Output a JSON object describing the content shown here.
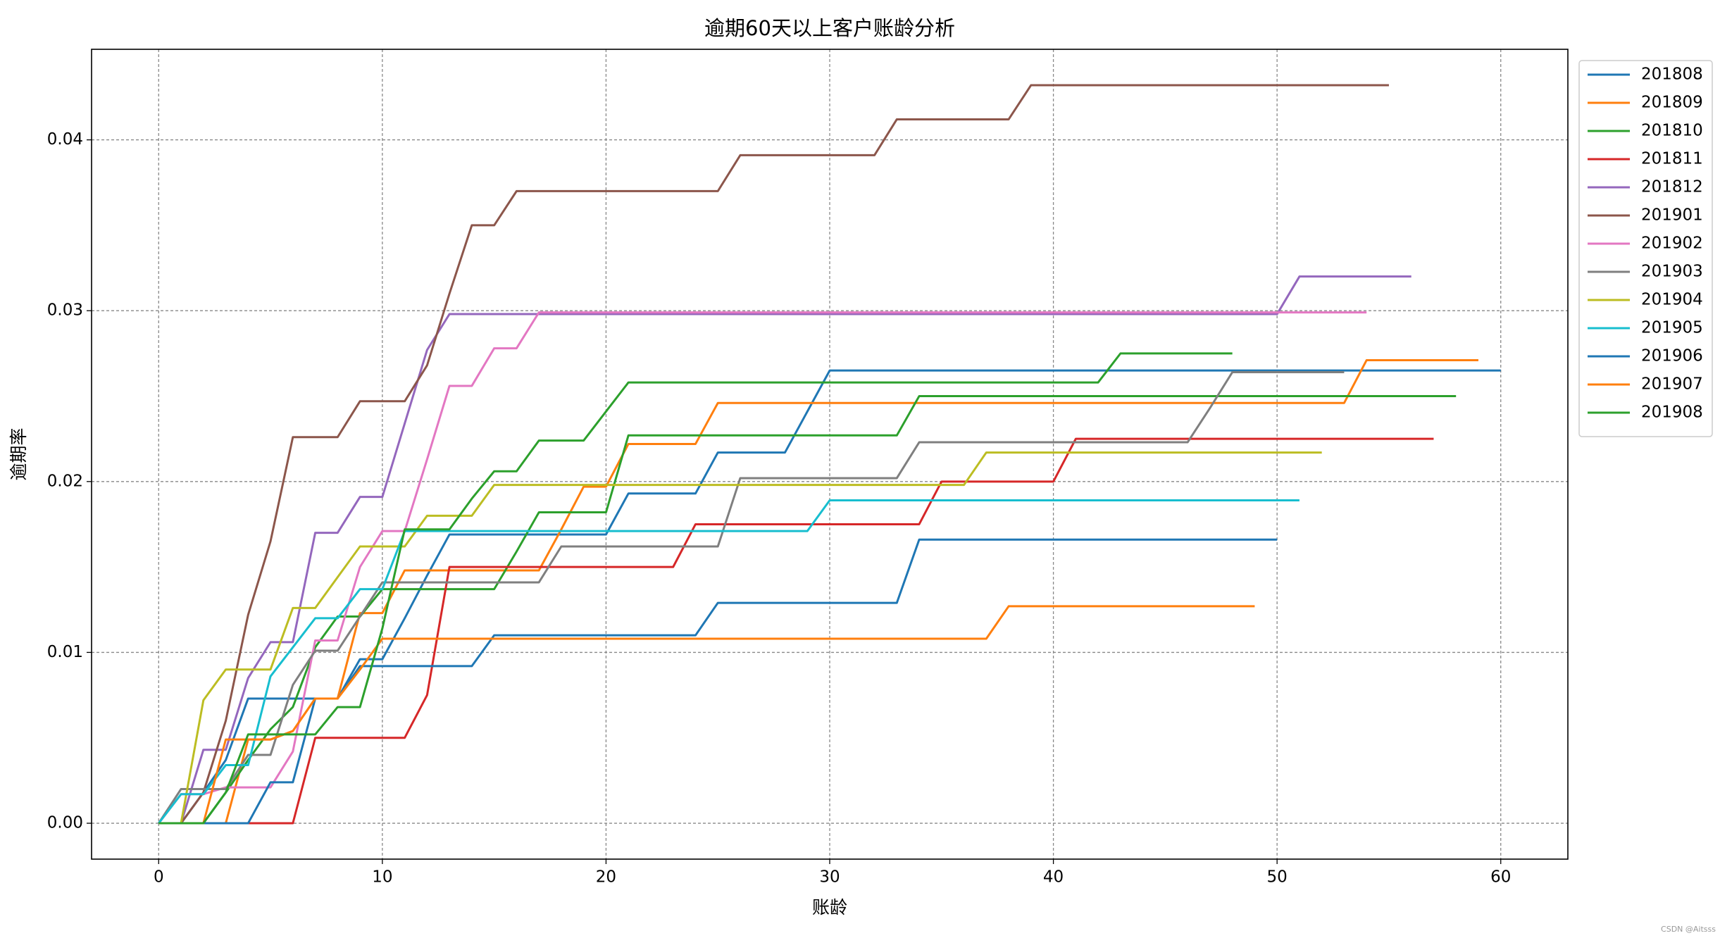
{
  "chart_data": {
    "type": "line",
    "title": "逾期60天以上客户账龄分析",
    "xlabel": "账龄",
    "ylabel": "逾期率",
    "watermark": "CSDN @Aitsss",
    "x": [
      0,
      1,
      2,
      3,
      4,
      5,
      6,
      7,
      8,
      9,
      10,
      11,
      12,
      13,
      14,
      15,
      16,
      17,
      18,
      19,
      20,
      21,
      22,
      23,
      24,
      25,
      26,
      27,
      28,
      29,
      30,
      31,
      32,
      33,
      34,
      35,
      36,
      37,
      38,
      39,
      40,
      41,
      42,
      43,
      44,
      45,
      46,
      47,
      48,
      49,
      50,
      51,
      52,
      53,
      54,
      55,
      56,
      57,
      58,
      59,
      60
    ],
    "xlim": [
      -3,
      63
    ],
    "ylim": [
      -0.0021,
      0.0453
    ],
    "xticks": [
      0,
      10,
      20,
      30,
      40,
      50,
      60
    ],
    "yticks": [
      {
        "value": 0,
        "label": "0.00"
      },
      0.01,
      0.02,
      0.03,
      0.04
    ],
    "grid": true,
    "legend": "outside upper right",
    "series": [
      {
        "name": "201808",
        "color": "#1f77b4",
        "values": [
          0,
          0,
          0.0018,
          0.0037,
          0.0073,
          0.0073,
          0.0073,
          0.0073,
          0.0073,
          0.0096,
          0.0096,
          0.012,
          0.0145,
          0.0169,
          0.0169,
          0.0169,
          0.0169,
          0.0169,
          0.0169,
          0.0169,
          0.0169,
          0.0193,
          0.0193,
          0.0193,
          0.0193,
          0.0217,
          0.0217,
          0.0217,
          0.0217,
          0.0241,
          0.0265,
          0.0265,
          0.0265,
          0.0265,
          0.0265,
          0.0265,
          0.0265,
          0.0265,
          0.0265,
          0.0265,
          0.0265,
          0.0265,
          0.0265,
          0.0265,
          0.0265,
          0.0265,
          0.0265,
          0.0265,
          0.0265,
          0.0265,
          0.0265,
          0.0265,
          0.0265,
          0.0265,
          0.0265,
          0.0265,
          0.0265,
          0.0265,
          0.0265,
          0.0265,
          0.0265
        ]
      },
      {
        "name": "201809",
        "color": "#ff7f0e",
        "values": [
          0,
          0,
          0,
          0,
          0.0049,
          0.0049,
          0.0054,
          0.0073,
          0.0073,
          0.0123,
          0.0123,
          0.0148,
          0.0148,
          0.0148,
          0.0148,
          0.0148,
          0.0148,
          0.0148,
          0.0172,
          0.0197,
          0.0197,
          0.0222,
          0.0222,
          0.0222,
          0.0222,
          0.0246,
          0.0246,
          0.0246,
          0.0246,
          0.0246,
          0.0246,
          0.0246,
          0.0246,
          0.0246,
          0.0246,
          0.0246,
          0.0246,
          0.0246,
          0.0246,
          0.0246,
          0.0246,
          0.0246,
          0.0246,
          0.0246,
          0.0246,
          0.0246,
          0.0246,
          0.0246,
          0.0246,
          0.0246,
          0.0246,
          0.0246,
          0.0246,
          0.0246,
          0.0271,
          0.0271,
          0.0271,
          0.0271,
          0.0271,
          0.0271,
          null
        ]
      },
      {
        "name": "201810",
        "color": "#2ca02c",
        "values": [
          0,
          0,
          0,
          0.0018,
          0.0037,
          0.0055,
          0.0068,
          0.0103,
          0.0121,
          0.0121,
          0.0137,
          0.0137,
          0.0137,
          0.0137,
          0.0137,
          0.0137,
          0.0159,
          0.0182,
          0.0182,
          0.0182,
          0.0182,
          0.0227,
          0.0227,
          0.0227,
          0.0227,
          0.0227,
          0.0227,
          0.0227,
          0.0227,
          0.0227,
          0.0227,
          0.0227,
          0.0227,
          0.0227,
          0.025,
          0.025,
          0.025,
          0.025,
          0.025,
          0.025,
          0.025,
          0.025,
          0.025,
          0.025,
          0.025,
          0.025,
          0.025,
          0.025,
          0.025,
          0.025,
          0.025,
          0.025,
          0.025,
          0.025,
          0.025,
          0.025,
          0.025,
          0.025,
          0.025,
          null,
          null
        ]
      },
      {
        "name": "201811",
        "color": "#d62728",
        "values": [
          0,
          0,
          0,
          0,
          0,
          0,
          0,
          0.005,
          0.005,
          0.005,
          0.005,
          0.005,
          0.0075,
          0.015,
          0.015,
          0.015,
          0.015,
          0.015,
          0.015,
          0.015,
          0.015,
          0.015,
          0.015,
          0.015,
          0.0175,
          0.0175,
          0.0175,
          0.0175,
          0.0175,
          0.0175,
          0.0175,
          0.0175,
          0.0175,
          0.0175,
          0.0175,
          0.02,
          0.02,
          0.02,
          0.02,
          0.02,
          0.02,
          0.0225,
          0.0225,
          0.0225,
          0.0225,
          0.0225,
          0.0225,
          0.0225,
          0.0225,
          0.0225,
          0.0225,
          0.0225,
          0.0225,
          0.0225,
          0.0225,
          0.0225,
          0.0225,
          0.0225,
          null,
          null,
          null
        ]
      },
      {
        "name": "201812",
        "color": "#9467bd",
        "values": [
          0,
          0,
          0.0043,
          0.0043,
          0.0085,
          0.0106,
          0.0106,
          0.017,
          0.017,
          0.0191,
          0.0191,
          0.0234,
          0.0277,
          0.0298,
          0.0298,
          0.0298,
          0.0298,
          0.0298,
          0.0298,
          0.0298,
          0.0298,
          0.0298,
          0.0298,
          0.0298,
          0.0298,
          0.0298,
          0.0298,
          0.0298,
          0.0298,
          0.0298,
          0.0298,
          0.0298,
          0.0298,
          0.0298,
          0.0298,
          0.0298,
          0.0298,
          0.0298,
          0.0298,
          0.0298,
          0.0298,
          0.0298,
          0.0298,
          0.0298,
          0.0298,
          0.0298,
          0.0298,
          0.0298,
          0.0298,
          0.0298,
          0.0298,
          0.032,
          0.032,
          0.032,
          0.032,
          0.032,
          0.032,
          null,
          null,
          null,
          null
        ]
      },
      {
        "name": "201901",
        "color": "#8c564b",
        "values": [
          0,
          0,
          0.0018,
          0.006,
          0.0122,
          0.0165,
          0.0226,
          0.0226,
          0.0226,
          0.0247,
          0.0247,
          0.0247,
          0.0268,
          0.031,
          0.035,
          0.035,
          0.037,
          0.037,
          0.037,
          0.037,
          0.037,
          0.037,
          0.037,
          0.037,
          0.037,
          0.037,
          0.0391,
          0.0391,
          0.0391,
          0.0391,
          0.0391,
          0.0391,
          0.0391,
          0.0412,
          0.0412,
          0.0412,
          0.0412,
          0.0412,
          0.0412,
          0.0432,
          0.0432,
          0.0432,
          0.0432,
          0.0432,
          0.0432,
          0.0432,
          0.0432,
          0.0432,
          0.0432,
          0.0432,
          0.0432,
          0.0432,
          0.0432,
          0.0432,
          0.0432,
          0.0432,
          null,
          null,
          null,
          null,
          null
        ]
      },
      {
        "name": "201902",
        "color": "#e377c2",
        "values": [
          0,
          0.0017,
          0.0017,
          0.0021,
          0.0021,
          0.0021,
          0.0042,
          0.0107,
          0.0107,
          0.015,
          0.0171,
          0.0171,
          0.0213,
          0.0256,
          0.0256,
          0.0278,
          0.0278,
          0.0299,
          0.0299,
          0.0299,
          0.0299,
          0.0299,
          0.0299,
          0.0299,
          0.0299,
          0.0299,
          0.0299,
          0.0299,
          0.0299,
          0.0299,
          0.0299,
          0.0299,
          0.0299,
          0.0299,
          0.0299,
          0.0299,
          0.0299,
          0.0299,
          0.0299,
          0.0299,
          0.0299,
          0.0299,
          0.0299,
          0.0299,
          0.0299,
          0.0299,
          0.0299,
          0.0299,
          0.0299,
          0.0299,
          0.0299,
          0.0299,
          0.0299,
          0.0299,
          0.0299,
          null,
          null,
          null,
          null,
          null,
          null
        ]
      },
      {
        "name": "201903",
        "color": "#7f7f7f",
        "values": [
          0,
          0.002,
          0.002,
          0.002,
          0.004,
          0.004,
          0.0081,
          0.0101,
          0.0101,
          0.0121,
          0.0141,
          0.0141,
          0.0141,
          0.0141,
          0.0141,
          0.0141,
          0.0141,
          0.0141,
          0.0162,
          0.0162,
          0.0162,
          0.0162,
          0.0162,
          0.0162,
          0.0162,
          0.0162,
          0.0202,
          0.0202,
          0.0202,
          0.0202,
          0.0202,
          0.0202,
          0.0202,
          0.0202,
          0.0223,
          0.0223,
          0.0223,
          0.0223,
          0.0223,
          0.0223,
          0.0223,
          0.0223,
          0.0223,
          0.0223,
          0.0223,
          0.0223,
          0.0223,
          0.0243,
          0.0264,
          0.0264,
          0.0264,
          0.0264,
          0.0264,
          0.0264,
          null,
          null,
          null,
          null,
          null,
          null,
          null
        ]
      },
      {
        "name": "201904",
        "color": "#bcbd22",
        "values": [
          0,
          0,
          0.0072,
          0.009,
          0.009,
          0.009,
          0.0126,
          0.0126,
          0.0144,
          0.0162,
          0.0162,
          0.0162,
          0.018,
          0.018,
          0.018,
          0.0198,
          0.0198,
          0.0198,
          0.0198,
          0.0198,
          0.0198,
          0.0198,
          0.0198,
          0.0198,
          0.0198,
          0.0198,
          0.0198,
          0.0198,
          0.0198,
          0.0198,
          0.0198,
          0.0198,
          0.0198,
          0.0198,
          0.0198,
          0.0198,
          0.0198,
          0.0217,
          0.0217,
          0.0217,
          0.0217,
          0.0217,
          0.0217,
          0.0217,
          0.0217,
          0.0217,
          0.0217,
          0.0217,
          0.0217,
          0.0217,
          0.0217,
          0.0217,
          0.0217,
          null,
          null,
          null,
          null,
          null,
          null,
          null,
          null
        ]
      },
      {
        "name": "201905",
        "color": "#17becf",
        "values": [
          0,
          0.0017,
          0.0017,
          0.0034,
          0.0034,
          0.0086,
          0.0103,
          0.012,
          0.012,
          0.0137,
          0.0137,
          0.0171,
          0.0171,
          0.0171,
          0.0171,
          0.0171,
          0.0171,
          0.0171,
          0.0171,
          0.0171,
          0.0171,
          0.0171,
          0.0171,
          0.0171,
          0.0171,
          0.0171,
          0.0171,
          0.0171,
          0.0171,
          0.0171,
          0.0189,
          0.0189,
          0.0189,
          0.0189,
          0.0189,
          0.0189,
          0.0189,
          0.0189,
          0.0189,
          0.0189,
          0.0189,
          0.0189,
          0.0189,
          0.0189,
          0.0189,
          0.0189,
          0.0189,
          0.0189,
          0.0189,
          0.0189,
          0.0189,
          0.0189,
          null,
          null,
          null,
          null,
          null,
          null,
          null,
          null,
          null
        ]
      },
      {
        "name": "201906",
        "color": "#1f77b4",
        "values": [
          0,
          0,
          0,
          0,
          0,
          0.0024,
          0.0024,
          0.0073,
          0.0073,
          0.0092,
          0.0092,
          0.0092,
          0.0092,
          0.0092,
          0.0092,
          0.011,
          0.011,
          0.011,
          0.011,
          0.011,
          0.011,
          0.011,
          0.011,
          0.011,
          0.011,
          0.0129,
          0.0129,
          0.0129,
          0.0129,
          0.0129,
          0.0129,
          0.0129,
          0.0129,
          0.0129,
          0.0166,
          0.0166,
          0.0166,
          0.0166,
          0.0166,
          0.0166,
          0.0166,
          0.0166,
          0.0166,
          0.0166,
          0.0166,
          0.0166,
          0.0166,
          0.0166,
          0.0166,
          0.0166,
          0.0166,
          null,
          null,
          null,
          null,
          null,
          null,
          null,
          null,
          null,
          null
        ]
      },
      {
        "name": "201907",
        "color": "#ff7f0e",
        "values": [
          0,
          0,
          0,
          0.0049,
          0.0049,
          0.0049,
          0.0054,
          0.0073,
          0.0073,
          0.009,
          0.0108,
          0.0108,
          0.0108,
          0.0108,
          0.0108,
          0.0108,
          0.0108,
          0.0108,
          0.0108,
          0.0108,
          0.0108,
          0.0108,
          0.0108,
          0.0108,
          0.0108,
          0.0108,
          0.0108,
          0.0108,
          0.0108,
          0.0108,
          0.0108,
          0.0108,
          0.0108,
          0.0108,
          0.0108,
          0.0108,
          0.0108,
          0.0108,
          0.0127,
          0.0127,
          0.0127,
          0.0127,
          0.0127,
          0.0127,
          0.0127,
          0.0127,
          0.0127,
          0.0127,
          0.0127,
          0.0127,
          null,
          null,
          null,
          null,
          null,
          null,
          null,
          null,
          null,
          null,
          null
        ]
      },
      {
        "name": "201908",
        "color": "#2ca02c",
        "values": [
          0,
          0,
          0,
          0.0018,
          0.0052,
          0.0052,
          0.0052,
          0.0052,
          0.0068,
          0.0068,
          0.0114,
          0.0172,
          0.0172,
          0.0172,
          0.019,
          0.0206,
          0.0206,
          0.0224,
          0.0224,
          0.0224,
          0.0241,
          0.0258,
          0.0258,
          0.0258,
          0.0258,
          0.0258,
          0.0258,
          0.0258,
          0.0258,
          0.0258,
          0.0258,
          0.0258,
          0.0258,
          0.0258,
          0.0258,
          0.0258,
          0.0258,
          0.0258,
          0.0258,
          0.0258,
          0.0258,
          0.0258,
          0.0258,
          0.0275,
          0.0275,
          0.0275,
          0.0275,
          0.0275,
          0.0275,
          null,
          null,
          null,
          null,
          null,
          null,
          null,
          null,
          null,
          null,
          null,
          null
        ]
      }
    ]
  }
}
